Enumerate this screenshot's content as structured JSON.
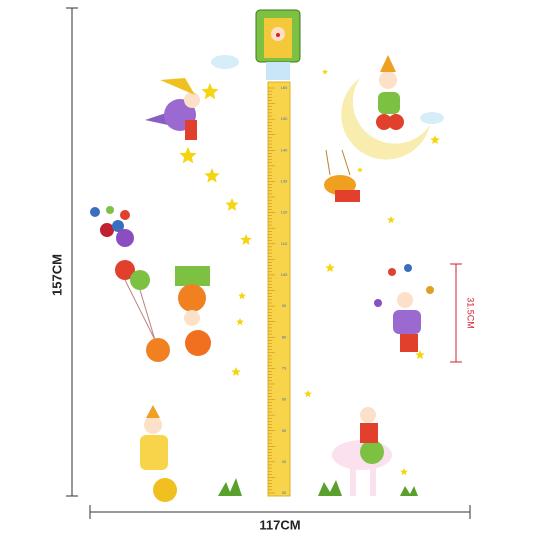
{
  "dimensions": {
    "height": "157CM",
    "width": "117CM",
    "detail": "31.5CM"
  },
  "ruler": {
    "labels": [
      "160",
      "150",
      "140",
      "130",
      "120",
      "110",
      "100",
      "90",
      "80",
      "70",
      "60",
      "50",
      "40",
      "30"
    ]
  }
}
